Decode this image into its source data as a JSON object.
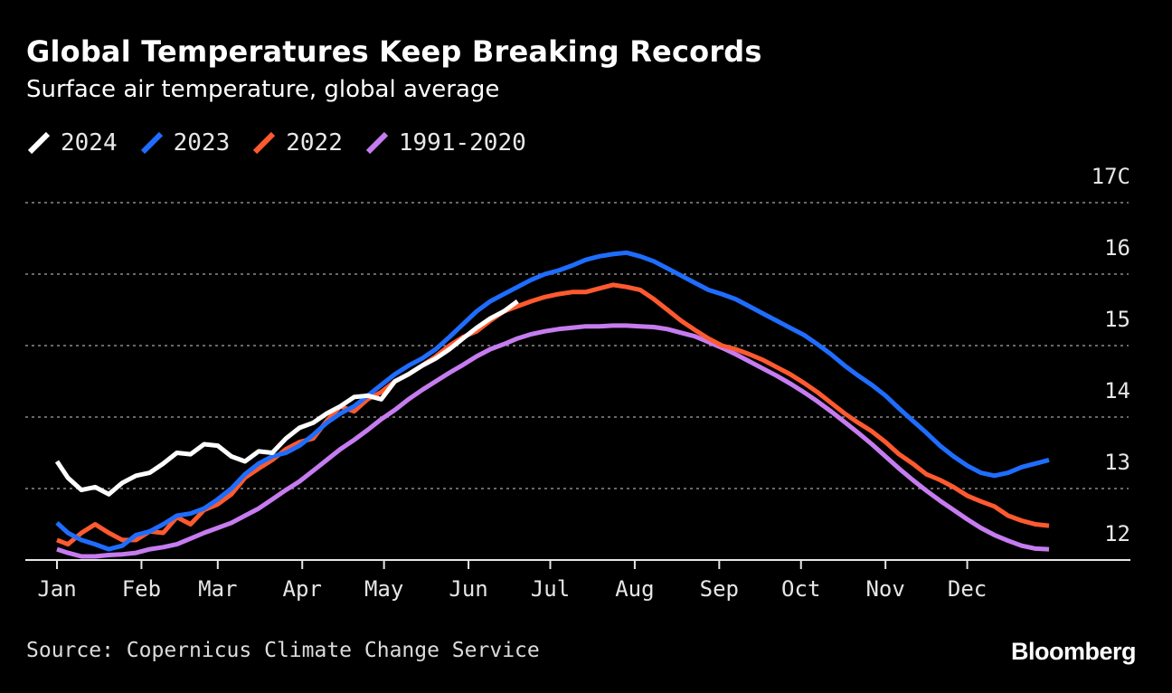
{
  "title": "Global Temperatures Keep Breaking Records",
  "subtitle": "Surface air temperature, global average",
  "source": "Source: Copernicus Climate Change Service",
  "brand": "Bloomberg",
  "chart_data": {
    "type": "line",
    "unit_suffix": "C",
    "y_ticks": [
      "12",
      "13",
      "14",
      "15",
      "16",
      "17C"
    ],
    "ylim": [
      12,
      17
    ],
    "x_ticks": [
      "Jan",
      "Feb",
      "Mar",
      "Apr",
      "May",
      "Jun",
      "Jul",
      "Aug",
      "Sep",
      "Oct",
      "Nov",
      "Dec"
    ],
    "grid": true,
    "legend_position": "top-left",
    "series": [
      {
        "name": "1991-2020",
        "color": "#c67cf0",
        "points": [
          [
            1,
            12.15
          ],
          [
            5,
            12.1
          ],
          [
            10,
            12.05
          ],
          [
            15,
            12.05
          ],
          [
            20,
            12.07
          ],
          [
            25,
            12.08
          ],
          [
            30,
            12.1
          ],
          [
            35,
            12.15
          ],
          [
            40,
            12.18
          ],
          [
            45,
            12.22
          ],
          [
            50,
            12.3
          ],
          [
            55,
            12.38
          ],
          [
            60,
            12.45
          ],
          [
            65,
            12.52
          ],
          [
            70,
            12.62
          ],
          [
            75,
            12.72
          ],
          [
            80,
            12.85
          ],
          [
            85,
            12.98
          ],
          [
            90,
            13.1
          ],
          [
            95,
            13.25
          ],
          [
            100,
            13.4
          ],
          [
            105,
            13.55
          ],
          [
            110,
            13.68
          ],
          [
            115,
            13.82
          ],
          [
            120,
            13.97
          ],
          [
            125,
            14.1
          ],
          [
            130,
            14.25
          ],
          [
            135,
            14.38
          ],
          [
            140,
            14.5
          ],
          [
            145,
            14.62
          ],
          [
            150,
            14.73
          ],
          [
            155,
            14.85
          ],
          [
            160,
            14.95
          ],
          [
            165,
            15.02
          ],
          [
            170,
            15.1
          ],
          [
            175,
            15.16
          ],
          [
            180,
            15.2
          ],
          [
            185,
            15.23
          ],
          [
            190,
            15.25
          ],
          [
            195,
            15.27
          ],
          [
            200,
            15.27
          ],
          [
            205,
            15.28
          ],
          [
            210,
            15.28
          ],
          [
            215,
            15.27
          ],
          [
            220,
            15.26
          ],
          [
            225,
            15.23
          ],
          [
            230,
            15.18
          ],
          [
            235,
            15.13
          ],
          [
            240,
            15.05
          ],
          [
            245,
            14.97
          ],
          [
            250,
            14.88
          ],
          [
            255,
            14.78
          ],
          [
            260,
            14.68
          ],
          [
            265,
            14.58
          ],
          [
            270,
            14.47
          ],
          [
            275,
            14.35
          ],
          [
            280,
            14.22
          ],
          [
            285,
            14.08
          ],
          [
            290,
            13.93
          ],
          [
            295,
            13.78
          ],
          [
            300,
            13.62
          ],
          [
            305,
            13.45
          ],
          [
            310,
            13.28
          ],
          [
            315,
            13.12
          ],
          [
            320,
            12.97
          ],
          [
            325,
            12.83
          ],
          [
            330,
            12.7
          ],
          [
            335,
            12.57
          ],
          [
            340,
            12.45
          ],
          [
            345,
            12.35
          ],
          [
            350,
            12.27
          ],
          [
            355,
            12.2
          ],
          [
            360,
            12.16
          ],
          [
            365,
            12.15
          ]
        ]
      },
      {
        "name": "2022",
        "color": "#ff5a2f",
        "points": [
          [
            1,
            12.28
          ],
          [
            5,
            12.22
          ],
          [
            10,
            12.38
          ],
          [
            15,
            12.5
          ],
          [
            20,
            12.38
          ],
          [
            25,
            12.28
          ],
          [
            30,
            12.28
          ],
          [
            35,
            12.4
          ],
          [
            40,
            12.38
          ],
          [
            45,
            12.6
          ],
          [
            50,
            12.5
          ],
          [
            55,
            12.7
          ],
          [
            60,
            12.78
          ],
          [
            65,
            12.92
          ],
          [
            70,
            13.15
          ],
          [
            75,
            13.28
          ],
          [
            80,
            13.4
          ],
          [
            85,
            13.55
          ],
          [
            90,
            13.65
          ],
          [
            95,
            13.7
          ],
          [
            100,
            13.95
          ],
          [
            105,
            14.15
          ],
          [
            110,
            14.08
          ],
          [
            115,
            14.25
          ],
          [
            120,
            14.35
          ],
          [
            125,
            14.5
          ],
          [
            130,
            14.6
          ],
          [
            135,
            14.72
          ],
          [
            140,
            14.85
          ],
          [
            145,
            15.0
          ],
          [
            150,
            15.12
          ],
          [
            155,
            15.2
          ],
          [
            160,
            15.35
          ],
          [
            165,
            15.48
          ],
          [
            170,
            15.55
          ],
          [
            175,
            15.62
          ],
          [
            180,
            15.68
          ],
          [
            185,
            15.72
          ],
          [
            190,
            15.75
          ],
          [
            195,
            15.75
          ],
          [
            200,
            15.8
          ],
          [
            205,
            15.85
          ],
          [
            210,
            15.82
          ],
          [
            215,
            15.78
          ],
          [
            220,
            15.65
          ],
          [
            225,
            15.5
          ],
          [
            230,
            15.35
          ],
          [
            235,
            15.22
          ],
          [
            240,
            15.1
          ],
          [
            245,
            15.0
          ],
          [
            250,
            14.95
          ],
          [
            255,
            14.88
          ],
          [
            260,
            14.8
          ],
          [
            265,
            14.7
          ],
          [
            270,
            14.6
          ],
          [
            275,
            14.48
          ],
          [
            280,
            14.35
          ],
          [
            285,
            14.2
          ],
          [
            290,
            14.05
          ],
          [
            295,
            13.92
          ],
          [
            300,
            13.8
          ],
          [
            305,
            13.65
          ],
          [
            310,
            13.48
          ],
          [
            315,
            13.35
          ],
          [
            320,
            13.2
          ],
          [
            325,
            13.12
          ],
          [
            330,
            13.02
          ],
          [
            335,
            12.9
          ],
          [
            340,
            12.82
          ],
          [
            345,
            12.75
          ],
          [
            350,
            12.62
          ],
          [
            355,
            12.55
          ],
          [
            360,
            12.5
          ],
          [
            365,
            12.48
          ]
        ]
      },
      {
        "name": "2023",
        "color": "#1f6dff",
        "points": [
          [
            1,
            12.52
          ],
          [
            5,
            12.38
          ],
          [
            10,
            12.28
          ],
          [
            15,
            12.22
          ],
          [
            20,
            12.15
          ],
          [
            25,
            12.2
          ],
          [
            30,
            12.35
          ],
          [
            35,
            12.4
          ],
          [
            40,
            12.5
          ],
          [
            45,
            12.62
          ],
          [
            50,
            12.65
          ],
          [
            55,
            12.72
          ],
          [
            60,
            12.85
          ],
          [
            65,
            13.0
          ],
          [
            70,
            13.2
          ],
          [
            75,
            13.35
          ],
          [
            80,
            13.45
          ],
          [
            85,
            13.5
          ],
          [
            90,
            13.6
          ],
          [
            95,
            13.75
          ],
          [
            100,
            13.92
          ],
          [
            105,
            14.05
          ],
          [
            110,
            14.15
          ],
          [
            115,
            14.3
          ],
          [
            120,
            14.45
          ],
          [
            125,
            14.6
          ],
          [
            130,
            14.72
          ],
          [
            135,
            14.82
          ],
          [
            140,
            14.95
          ],
          [
            145,
            15.12
          ],
          [
            150,
            15.3
          ],
          [
            155,
            15.48
          ],
          [
            160,
            15.62
          ],
          [
            165,
            15.72
          ],
          [
            170,
            15.82
          ],
          [
            175,
            15.92
          ],
          [
            180,
            16.0
          ],
          [
            185,
            16.05
          ],
          [
            190,
            16.12
          ],
          [
            195,
            16.2
          ],
          [
            200,
            16.25
          ],
          [
            205,
            16.28
          ],
          [
            210,
            16.3
          ],
          [
            215,
            16.25
          ],
          [
            220,
            16.18
          ],
          [
            225,
            16.08
          ],
          [
            230,
            15.98
          ],
          [
            235,
            15.88
          ],
          [
            240,
            15.78
          ],
          [
            245,
            15.72
          ],
          [
            250,
            15.65
          ],
          [
            255,
            15.55
          ],
          [
            260,
            15.45
          ],
          [
            265,
            15.35
          ],
          [
            270,
            15.25
          ],
          [
            275,
            15.15
          ],
          [
            280,
            15.02
          ],
          [
            285,
            14.88
          ],
          [
            290,
            14.72
          ],
          [
            295,
            14.58
          ],
          [
            300,
            14.45
          ],
          [
            305,
            14.3
          ],
          [
            310,
            14.12
          ],
          [
            315,
            13.95
          ],
          [
            320,
            13.78
          ],
          [
            325,
            13.6
          ],
          [
            330,
            13.45
          ],
          [
            335,
            13.32
          ],
          [
            340,
            13.22
          ],
          [
            345,
            13.18
          ],
          [
            350,
            13.22
          ],
          [
            355,
            13.3
          ],
          [
            360,
            13.35
          ],
          [
            365,
            13.4
          ]
        ]
      },
      {
        "name": "2024",
        "color": "#ffffff",
        "points": [
          [
            1,
            13.38
          ],
          [
            5,
            13.15
          ],
          [
            10,
            12.98
          ],
          [
            15,
            13.02
          ],
          [
            20,
            12.92
          ],
          [
            25,
            13.08
          ],
          [
            30,
            13.18
          ],
          [
            35,
            13.22
          ],
          [
            40,
            13.35
          ],
          [
            45,
            13.5
          ],
          [
            50,
            13.48
          ],
          [
            55,
            13.62
          ],
          [
            60,
            13.6
          ],
          [
            65,
            13.45
          ],
          [
            70,
            13.38
          ],
          [
            75,
            13.52
          ],
          [
            80,
            13.5
          ],
          [
            85,
            13.7
          ],
          [
            90,
            13.85
          ],
          [
            95,
            13.92
          ],
          [
            100,
            14.05
          ],
          [
            105,
            14.15
          ],
          [
            110,
            14.28
          ],
          [
            115,
            14.3
          ],
          [
            120,
            14.25
          ],
          [
            125,
            14.5
          ],
          [
            130,
            14.6
          ],
          [
            135,
            14.72
          ],
          [
            140,
            14.82
          ],
          [
            145,
            14.95
          ],
          [
            150,
            15.1
          ],
          [
            155,
            15.25
          ],
          [
            160,
            15.38
          ],
          [
            165,
            15.48
          ],
          [
            170,
            15.62
          ]
        ]
      }
    ]
  }
}
